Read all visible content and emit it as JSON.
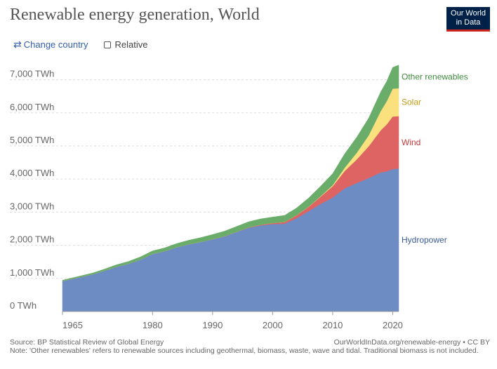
{
  "header": {
    "title": "Renewable energy generation, World"
  },
  "logo": {
    "line1": "Our World",
    "line2": "in Data"
  },
  "controls": {
    "change_country": "Change country",
    "relative": "Relative"
  },
  "footer": {
    "source": "Source: BP Statistical Review of Global Energy",
    "url": "OurWorldInData.org/renewable-energy • CC BY",
    "note": "Note: 'Other renewables' refers to renewable sources including geothermal, biomass, waste, wave and tidal. Traditional biomass is not included."
  },
  "chart_data": {
    "type": "area",
    "stacked": true,
    "ylim": [
      0,
      7500
    ],
    "yticks": [
      0,
      1000,
      2000,
      3000,
      4000,
      5000,
      6000,
      7000
    ],
    "ytick_labels": [
      "0 TWh",
      "1,000 TWh",
      "2,000 TWh",
      "3,000 TWh",
      "4,000 TWh",
      "5,000 TWh",
      "6,000 TWh",
      "7,000 TWh"
    ],
    "xlim": [
      1965,
      2021
    ],
    "xticks": [
      1965,
      1980,
      1990,
      2000,
      2010,
      2020
    ],
    "grid": true,
    "legend": "right-inline",
    "x": [
      1965,
      1967,
      1970,
      1972,
      1974,
      1976,
      1978,
      1980,
      1982,
      1984,
      1986,
      1988,
      1990,
      1992,
      1994,
      1996,
      1998,
      2000,
      2002,
      2004,
      2006,
      2008,
      2010,
      2012,
      2014,
      2016,
      2018,
      2019,
      2020,
      2021
    ],
    "series": [
      {
        "name": "Hydropower",
        "color": "#6d8cc4",
        "values": [
          920,
          1000,
          1120,
          1230,
          1350,
          1440,
          1570,
          1740,
          1820,
          1940,
          2030,
          2100,
          2180,
          2270,
          2400,
          2530,
          2600,
          2640,
          2650,
          2820,
          3030,
          3250,
          3440,
          3720,
          3880,
          4030,
          4200,
          4230,
          4300,
          4320
        ]
      },
      {
        "name": "Wind",
        "color": "#de6464",
        "values": [
          0,
          0,
          0,
          0,
          0,
          0,
          0,
          0,
          0,
          0,
          0,
          0,
          4,
          5,
          7,
          10,
          20,
          31,
          52,
          85,
          132,
          220,
          342,
          522,
          710,
          960,
          1270,
          1420,
          1590,
          1580
        ]
      },
      {
        "name": "Solar",
        "color": "#fbe17e",
        "values": [
          0,
          0,
          0,
          0,
          0,
          0,
          0,
          0,
          0,
          0,
          0,
          0,
          0,
          0,
          0,
          0,
          1,
          1,
          1,
          3,
          6,
          13,
          32,
          100,
          200,
          330,
          580,
          700,
          840,
          840
        ]
      },
      {
        "name": "Other renewables",
        "color": "#6aac6a",
        "values": [
          25,
          30,
          40,
          50,
          60,
          70,
          80,
          90,
          100,
          110,
          120,
          130,
          140,
          150,
          160,
          170,
          175,
          180,
          200,
          220,
          260,
          300,
          350,
          420,
          470,
          520,
          580,
          600,
          640,
          700
        ]
      }
    ],
    "label_colors": {
      "Hydropower": "#3a5a9a",
      "Wind": "#c83a3a",
      "Solar": "#c79a12",
      "Other renewables": "#3f8a3f"
    }
  }
}
